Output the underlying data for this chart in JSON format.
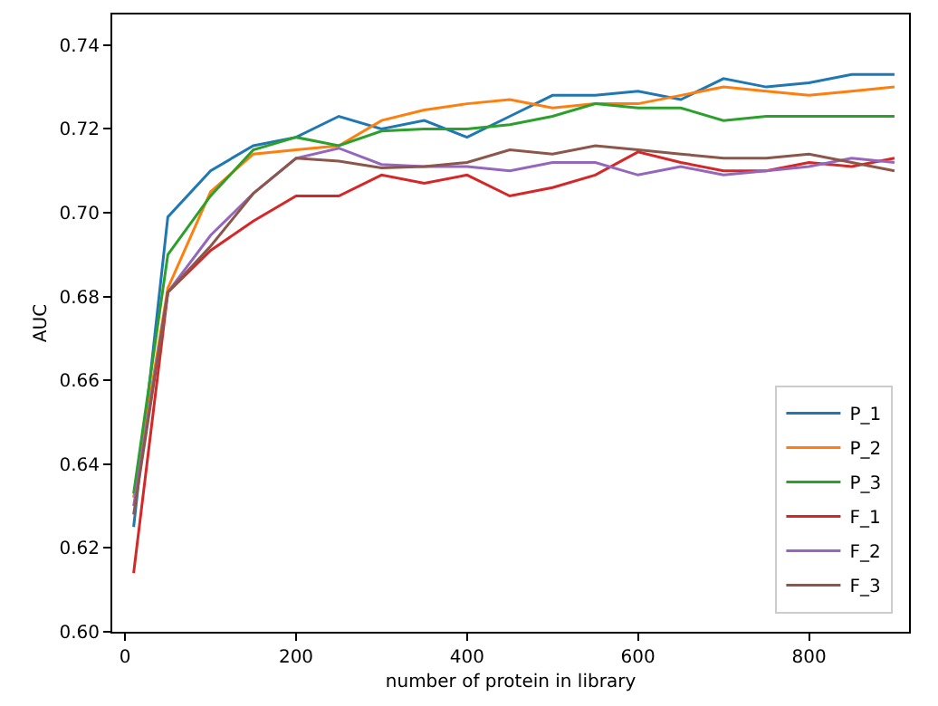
{
  "chart_data": {
    "type": "line",
    "xlabel": "number of protein in library",
    "ylabel": "AUC",
    "x": [
      10,
      50,
      100,
      150,
      200,
      250,
      300,
      350,
      400,
      450,
      500,
      550,
      600,
      650,
      700,
      750,
      800,
      850,
      900
    ],
    "xlim": [
      -15,
      917
    ],
    "xticks": [
      0,
      200,
      400,
      600,
      800
    ],
    "ylim": [
      0.6,
      0.7473
    ],
    "yticks": [
      {
        "value": 0.6,
        "label": "0.60"
      },
      0.62,
      0.64,
      0.66,
      0.68,
      {
        "value": 0.7,
        "label": "0.70"
      },
      0.72,
      0.74
    ],
    "grid": false,
    "legend": "bottom right",
    "line_style": "solid",
    "marker": "none",
    "series": [
      {
        "name": "P_1",
        "color": "#1f77b4",
        "values": [
          0.625,
          0.699,
          0.71,
          0.716,
          0.718,
          0.723,
          0.72,
          0.722,
          0.718,
          0.723,
          0.728,
          0.728,
          0.729,
          0.727,
          0.732,
          0.73,
          0.731,
          0.733,
          0.733
        ]
      },
      {
        "name": "P_2",
        "color": "#ff7f0e",
        "values": [
          0.632,
          0.682,
          0.705,
          0.714,
          0.715,
          0.716,
          0.722,
          0.7245,
          0.726,
          0.727,
          0.725,
          0.726,
          0.726,
          0.728,
          0.73,
          0.729,
          0.728,
          0.729,
          0.73
        ]
      },
      {
        "name": "P_3",
        "color": "#2ca02c",
        "values": [
          0.633,
          0.69,
          0.704,
          0.715,
          0.718,
          0.716,
          0.7195,
          0.72,
          0.72,
          0.721,
          0.723,
          0.726,
          0.725,
          0.725,
          0.722,
          0.723,
          0.723,
          0.723,
          0.723
        ]
      },
      {
        "name": "F_1",
        "color": "#d62728",
        "values": [
          0.614,
          0.681,
          0.691,
          0.698,
          0.704,
          0.704,
          0.709,
          0.707,
          0.709,
          0.704,
          0.706,
          0.709,
          0.7145,
          0.712,
          0.71,
          0.71,
          0.712,
          0.711,
          0.713
        ]
      },
      {
        "name": "F_2",
        "color": "#9467bd",
        "values": [
          0.63,
          0.681,
          0.6946,
          0.7046,
          0.713,
          0.7154,
          0.7115,
          0.711,
          0.711,
          0.71,
          0.712,
          0.712,
          0.709,
          0.711,
          0.709,
          0.71,
          0.711,
          0.713,
          0.712
        ]
      },
      {
        "name": "F_3",
        "color": "#8c564b",
        "values": [
          0.628,
          0.681,
          0.692,
          0.7046,
          0.713,
          0.7123,
          0.7107,
          0.711,
          0.712,
          0.715,
          0.714,
          0.716,
          0.715,
          0.714,
          0.713,
          0.713,
          0.714,
          0.712,
          0.71
        ]
      }
    ]
  }
}
